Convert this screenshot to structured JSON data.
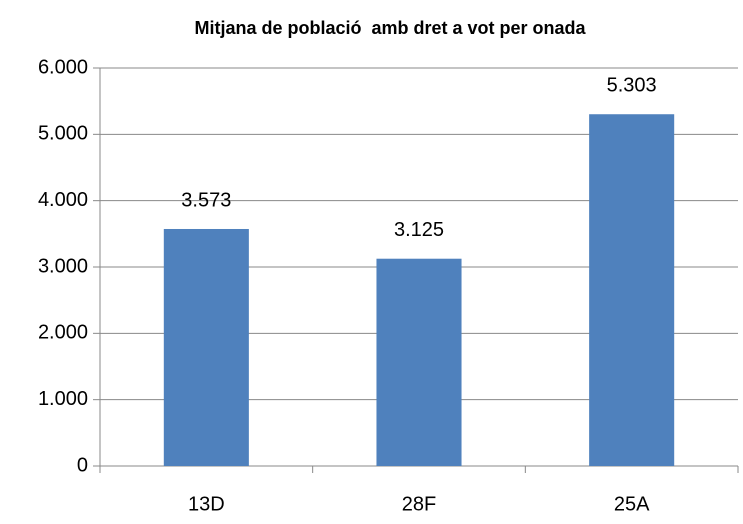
{
  "chart_data": {
    "type": "bar",
    "title": "Mitjana de població  amb dret a vot per onada",
    "categories": [
      "13D",
      "28F",
      "25A"
    ],
    "values": [
      3573,
      3125,
      5303
    ],
    "value_labels": [
      "3.573",
      "3.125",
      "5.303"
    ],
    "color": "#4f81bd",
    "ylim": [
      0,
      6000
    ],
    "yticks": [
      0,
      {
        "value": 1000,
        "label": "1.000"
      },
      {
        "value": 2000,
        "label": "2.000"
      },
      {
        "value": 3000,
        "label": "3.000"
      },
      {
        "value": 4000,
        "label": "4.000"
      },
      {
        "value": 5000,
        "label": "5.000"
      },
      {
        "value": 6000,
        "label": "6.000"
      }
    ],
    "grid": true
  }
}
